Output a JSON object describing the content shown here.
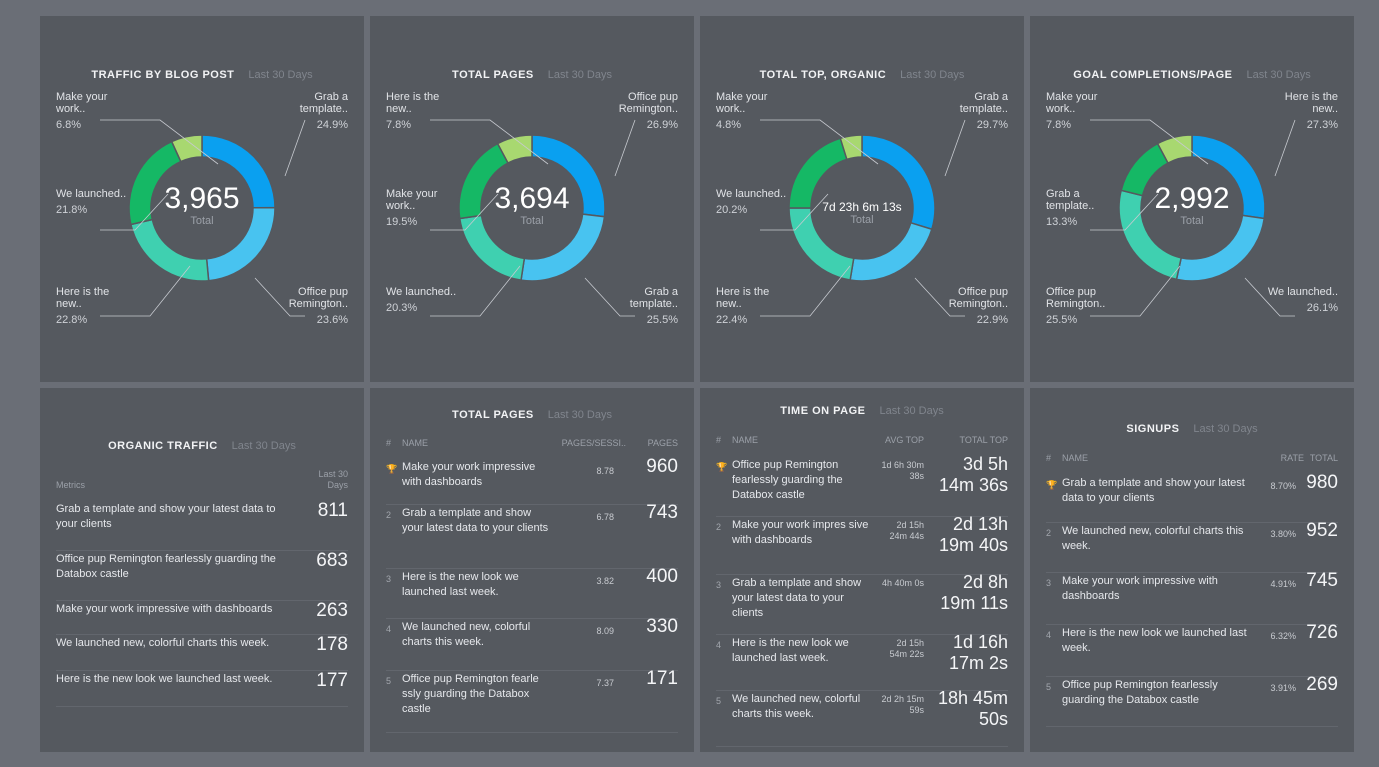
{
  "colors": {
    "bg": "#6a6e76",
    "panel": "#55595f",
    "blue": "#0aa0f0",
    "sky": "#48c3f0",
    "teal": "#3fd0b0",
    "green": "#15b865",
    "lime": "#a8d870"
  },
  "donuts": [
    {
      "title": "TRAFFIC BY BLOG POST",
      "period": "Last 30 Days",
      "center": "3,965",
      "center_label": "Total",
      "slices": [
        {
          "label": "Grab a template..",
          "percent": 24.9,
          "color": "#0aa0f0"
        },
        {
          "label": "Office pup Remington..",
          "percent": 23.6,
          "color": "#48c3f0"
        },
        {
          "label": "Here is the new..",
          "percent": 22.8,
          "color": "#3fd0b0"
        },
        {
          "label": "We launched..",
          "percent": 21.8,
          "color": "#15b865"
        },
        {
          "label": "Make your work..",
          "percent": 6.8,
          "color": "#a8d870"
        }
      ],
      "labels": {
        "top_left": {
          "text": "Make your work..",
          "pct": "6.8%"
        },
        "top_right": {
          "text": "Grab a template..",
          "pct": "24.9%"
        },
        "mid_left": {
          "text": "We launched..",
          "pct": "21.8%"
        },
        "bot_left": {
          "text": "Here is the new..",
          "pct": "22.8%"
        },
        "bot_right": {
          "text": "Office pup Remington..",
          "pct": "23.6%"
        }
      }
    },
    {
      "title": "TOTAL PAGES",
      "period": "Last 30 Days",
      "center": "3,694",
      "center_label": "Total",
      "slices": [
        {
          "label": "Office pup Remington..",
          "percent": 26.9,
          "color": "#0aa0f0"
        },
        {
          "label": "Grab a template..",
          "percent": 25.5,
          "color": "#48c3f0"
        },
        {
          "label": "We launched..",
          "percent": 20.3,
          "color": "#3fd0b0"
        },
        {
          "label": "Make your work..",
          "percent": 19.5,
          "color": "#15b865"
        },
        {
          "label": "Here is the new..",
          "percent": 7.8,
          "color": "#a8d870"
        }
      ],
      "labels": {
        "top_left": {
          "text": "Here is the new..",
          "pct": "7.8%"
        },
        "top_right": {
          "text": "Office pup Remington..",
          "pct": "26.9%"
        },
        "mid_left": {
          "text": "Make your work..",
          "pct": "19.5%"
        },
        "bot_left": {
          "text": "We launched..",
          "pct": "20.3%"
        },
        "bot_right": {
          "text": "Grab a template..",
          "pct": "25.5%"
        }
      }
    },
    {
      "title": "TOTAL TOP, ORGANIC",
      "period": "Last 30 Days",
      "center": "7d 23h 6m 13s",
      "center_label": "Total",
      "slices": [
        {
          "label": "Grab a template..",
          "percent": 29.7,
          "color": "#0aa0f0"
        },
        {
          "label": "Office pup Remington..",
          "percent": 22.9,
          "color": "#48c3f0"
        },
        {
          "label": "Here is the new..",
          "percent": 22.4,
          "color": "#3fd0b0"
        },
        {
          "label": "We launched..",
          "percent": 20.2,
          "color": "#15b865"
        },
        {
          "label": "Make your work..",
          "percent": 4.8,
          "color": "#a8d870"
        }
      ],
      "labels": {
        "top_left": {
          "text": "Make your work..",
          "pct": "4.8%"
        },
        "top_right": {
          "text": "Grab a template..",
          "pct": "29.7%"
        },
        "mid_left": {
          "text": "We launched..",
          "pct": "20.2%"
        },
        "bot_left": {
          "text": "Here is the new..",
          "pct": "22.4%"
        },
        "bot_right": {
          "text": "Office pup Remington..",
          "pct": "22.9%"
        }
      }
    },
    {
      "title": "GOAL COMPLETIONS/PAGE",
      "period": "Last 30 Days",
      "center": "2,992",
      "center_label": "Total",
      "slices": [
        {
          "label": "Here is the new..",
          "percent": 27.3,
          "color": "#0aa0f0"
        },
        {
          "label": "We launched..",
          "percent": 26.1,
          "color": "#48c3f0"
        },
        {
          "label": "Office pup Remington..",
          "percent": 25.5,
          "color": "#3fd0b0"
        },
        {
          "label": "Grab a template..",
          "percent": 13.3,
          "color": "#15b865"
        },
        {
          "label": "Make your work..",
          "percent": 7.8,
          "color": "#a8d870"
        }
      ],
      "labels": {
        "top_left": {
          "text": "Make your work..",
          "pct": "7.8%"
        },
        "top_right": {
          "text": "Here is the new..",
          "pct": "27.3%"
        },
        "mid_left": {
          "text": "Grab a template..",
          "pct": "13.3%"
        },
        "bot_left": {
          "text": "Office pup Remington..",
          "pct": "25.5%"
        },
        "bot_right": {
          "text": "We launched..",
          "pct": "26.1%"
        }
      }
    }
  ],
  "organic": {
    "title": "ORGANIC TRAFFIC",
    "period": "Last 30 Days",
    "col_metrics": "Metrics",
    "col_value": "Last 30 Days",
    "rows": [
      {
        "name": "Grab a template and show your latest data to your clients",
        "value": "811"
      },
      {
        "name": "Office pup Remington fearlessly guarding the Databox castle",
        "value": "683"
      },
      {
        "name": "Make your work impressive with dashboards",
        "value": "263"
      },
      {
        "name": "We launched new, colorful charts this week.",
        "value": "178"
      },
      {
        "name": "Here is the new look we launched last week.",
        "value": "177"
      }
    ]
  },
  "total_pages": {
    "title": "TOTAL PAGES",
    "period": "Last 30 Days",
    "col_num": "#",
    "col_name": "NAME",
    "col_mid": "PAGES/SESSI..",
    "col_val": "PAGES",
    "rows": [
      {
        "num": "🏆",
        "name": "Make your work impressive with dashboards",
        "mid": "8.78",
        "value": "960"
      },
      {
        "num": "2",
        "name": "Grab a template and show your latest data to your clients",
        "mid": "6.78",
        "value": "743"
      },
      {
        "num": "3",
        "name": "Here is the new look we launched last week.",
        "mid": "3.82",
        "value": "400"
      },
      {
        "num": "4",
        "name": "We launched new, colorful charts this week.",
        "mid": "8.09",
        "value": "330"
      },
      {
        "num": "5",
        "name": "Office pup Remington fearle ssly guarding the Databox castle",
        "mid": "7.37",
        "value": "171"
      }
    ]
  },
  "time_on_page": {
    "title": "TIME ON PAGE",
    "period": "Last 30 Days",
    "col_num": "#",
    "col_name": "NAME",
    "col_mid": "AVG TOP",
    "col_val": "TOTAL TOP",
    "rows": [
      {
        "num": "🏆",
        "name": "Office pup Remington fearlessly guarding the Databox castle",
        "mid": "1d 6h 30m 38s",
        "value": "3d 5h 14m 36s"
      },
      {
        "num": "2",
        "name": "Make your work impres sive with dashboards",
        "mid": "2d 15h 24m 44s",
        "value": "2d 13h 19m 40s"
      },
      {
        "num": "3",
        "name": "Grab a template and show your latest data to your clients",
        "mid": "4h 40m 0s",
        "value": "2d 8h 19m 11s"
      },
      {
        "num": "4",
        "name": "Here is the new look we launched last week.",
        "mid": "2d 15h 54m 22s",
        "value": "1d 16h 17m 2s"
      },
      {
        "num": "5",
        "name": "We launched new, colorful charts this week.",
        "mid": "2d 2h 15m 59s",
        "value": "18h 45m 50s"
      }
    ]
  },
  "signups": {
    "title": "SIGNUPS",
    "period": "Last 30 Days",
    "col_num": "#",
    "col_name": "NAME",
    "col_mid": "RATE",
    "col_val": "TOTAL",
    "rows": [
      {
        "num": "🏆",
        "name": "Grab a template and show your latest data to your clients",
        "mid": "8.70%",
        "value": "980"
      },
      {
        "num": "2",
        "name": "We launched new, colorful charts this week.",
        "mid": "3.80%",
        "value": "952"
      },
      {
        "num": "3",
        "name": "Make your work impressive with dashboards",
        "mid": "4.91%",
        "value": "745"
      },
      {
        "num": "4",
        "name": "Here is the new look we launched last week.",
        "mid": "6.32%",
        "value": "726"
      },
      {
        "num": "5",
        "name": "Office pup Remington fearlessly guarding the Databox castle",
        "mid": "3.91%",
        "value": "269"
      }
    ]
  }
}
